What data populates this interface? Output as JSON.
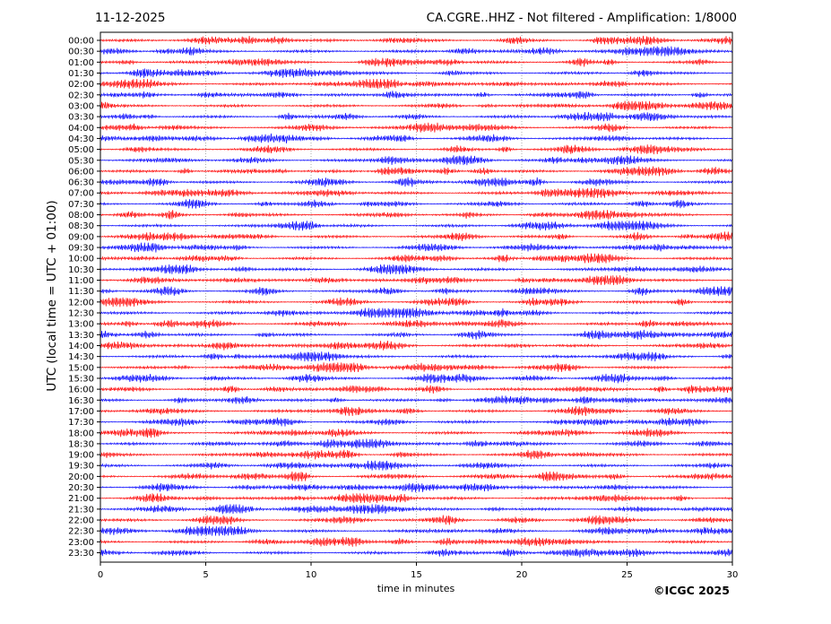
{
  "header": {
    "date": "11-12-2025",
    "title": "CA.CGRE..HHZ - Not filtered - Amplification: 1/8000"
  },
  "footer": {
    "copyright": "©ICGC 2025"
  },
  "chart_data": {
    "type": "line",
    "ylabel": "UTC (local time = UTC + 01:00)",
    "xlabel": "time in minutes",
    "xlim": [
      0,
      30
    ],
    "xticks": [
      "0",
      "5",
      "10",
      "15",
      "20",
      "25",
      "30"
    ],
    "grid": "vertical dotted at each 5 minutes",
    "colors": {
      "odd_rows": "#ff0000",
      "even_rows": "#0000ff"
    },
    "rows": [
      "00:00",
      "00:30",
      "01:00",
      "01:30",
      "02:00",
      "02:30",
      "03:00",
      "03:30",
      "04:00",
      "04:30",
      "05:00",
      "05:30",
      "06:00",
      "06:30",
      "07:00",
      "07:30",
      "08:00",
      "08:30",
      "09:00",
      "09:30",
      "10:00",
      "10:30",
      "11:00",
      "11:30",
      "12:00",
      "12:30",
      "13:00",
      "13:30",
      "14:00",
      "14:30",
      "15:00",
      "15:30",
      "16:00",
      "16:30",
      "17:00",
      "17:30",
      "18:00",
      "18:30",
      "19:00",
      "19:30",
      "20:00",
      "20:30",
      "21:00",
      "21:30",
      "22:00",
      "22:30",
      "23:00",
      "23:30"
    ]
  }
}
